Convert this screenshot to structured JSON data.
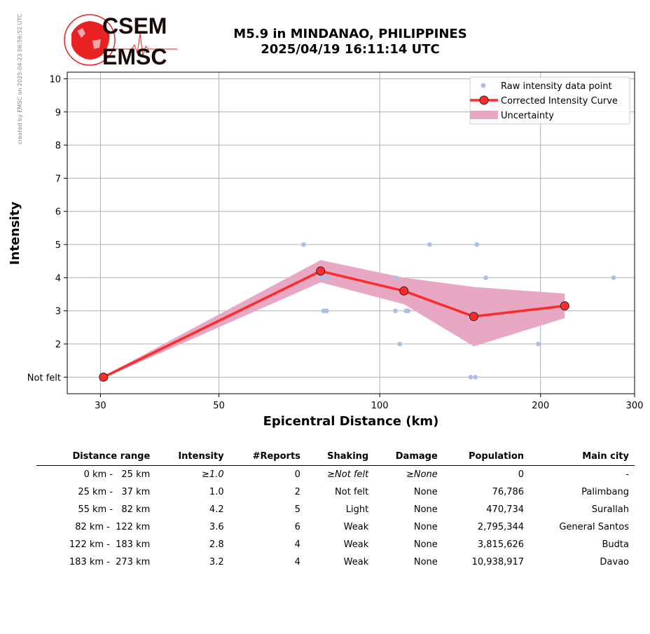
{
  "watermark": "created by EMSC on 2025-04-23 06:56:52 UTC",
  "logo": {
    "top": "CSEM",
    "bottom": "EMSC",
    "color_red": "#e82222",
    "color_dark": "#1a0a0a"
  },
  "title": {
    "line1": "M5.9 in MINDANAO, PHILIPPINES",
    "line2": "2025/04/19 16:11:14 UTC"
  },
  "chart_data": {
    "type": "line",
    "xlabel": "Epicentral Distance (km)",
    "ylabel": "Intensity",
    "x_scale": "log",
    "xlim": [
      26,
      300
    ],
    "ylim": [
      0.5,
      10.2
    ],
    "x_ticks": [
      30,
      50,
      100,
      200,
      300
    ],
    "y_ticks": [
      {
        "value": 1,
        "label": "Not felt"
      },
      {
        "value": 2,
        "label": "2"
      },
      {
        "value": 3,
        "label": "3"
      },
      {
        "value": 4,
        "label": "4"
      },
      {
        "value": 5,
        "label": "5"
      },
      {
        "value": 6,
        "label": "6"
      },
      {
        "value": 7,
        "label": "7"
      },
      {
        "value": 8,
        "label": "8"
      },
      {
        "value": 9,
        "label": "9"
      },
      {
        "value": 10,
        "label": "10"
      }
    ],
    "grid": true,
    "legend_position": "top-right",
    "colors": {
      "raw": "#aebde8",
      "curve": "#ff2a2a",
      "uncertainty": "#e8a8c4",
      "marker_edge": "#222222"
    },
    "legend": {
      "raw": "Raw intensity data point",
      "curve": "Corrected Intensity Curve",
      "uncertainty": "Uncertainty"
    },
    "raw_points": [
      {
        "x": 30.3,
        "y": 1
      },
      {
        "x": 30.6,
        "y": 1
      },
      {
        "x": 72,
        "y": 5
      },
      {
        "x": 78,
        "y": 4
      },
      {
        "x": 80,
        "y": 4
      },
      {
        "x": 78.5,
        "y": 3
      },
      {
        "x": 79.5,
        "y": 3
      },
      {
        "x": 107,
        "y": 4
      },
      {
        "x": 107,
        "y": 3
      },
      {
        "x": 112,
        "y": 3
      },
      {
        "x": 113,
        "y": 3
      },
      {
        "x": 109,
        "y": 2
      },
      {
        "x": 124,
        "y": 5
      },
      {
        "x": 152,
        "y": 5
      },
      {
        "x": 158,
        "y": 4
      },
      {
        "x": 148,
        "y": 1
      },
      {
        "x": 151,
        "y": 1
      },
      {
        "x": 198,
        "y": 2
      },
      {
        "x": 274,
        "y": 4
      }
    ],
    "curve": {
      "x": [
        30.4,
        77.5,
        111,
        150,
        222
      ],
      "y": [
        1.0,
        4.2,
        3.6,
        2.83,
        3.15
      ]
    },
    "uncertainty_upper": [
      1.03,
      4.53,
      4.0,
      3.72,
      3.52
    ],
    "uncertainty_lower": [
      0.97,
      3.86,
      3.2,
      1.93,
      2.78
    ]
  },
  "table": {
    "headers": [
      "Distance range",
      "Intensity",
      "#Reports",
      "Shaking",
      "Damage",
      "Population",
      "Main city"
    ],
    "rows": [
      {
        "range": "0 km -   25 km",
        "intensity": "≥1.0",
        "reports": "0",
        "shaking": "≥Not felt",
        "damage": "≥None",
        "population": "0",
        "city": "-"
      },
      {
        "range": "25 km -   37 km",
        "intensity": "1.0",
        "reports": "2",
        "shaking": "Not felt",
        "damage": "None",
        "population": "76,786",
        "city": "Palimbang"
      },
      {
        "range": "55 km -   82 km",
        "intensity": "4.2",
        "reports": "5",
        "shaking": "Light",
        "damage": "None",
        "population": "470,734",
        "city": "Surallah"
      },
      {
        "range": "82 km -  122 km",
        "intensity": "3.6",
        "reports": "6",
        "shaking": "Weak",
        "damage": "None",
        "population": "2,795,344",
        "city": "General Santos"
      },
      {
        "range": "122 km -  183 km",
        "intensity": "2.8",
        "reports": "4",
        "shaking": "Weak",
        "damage": "None",
        "population": "3,815,626",
        "city": "Budta"
      },
      {
        "range": "183 km -  273 km",
        "intensity": "3.2",
        "reports": "4",
        "shaking": "Weak",
        "damage": "None",
        "population": "10,938,917",
        "city": "Davao"
      }
    ]
  }
}
